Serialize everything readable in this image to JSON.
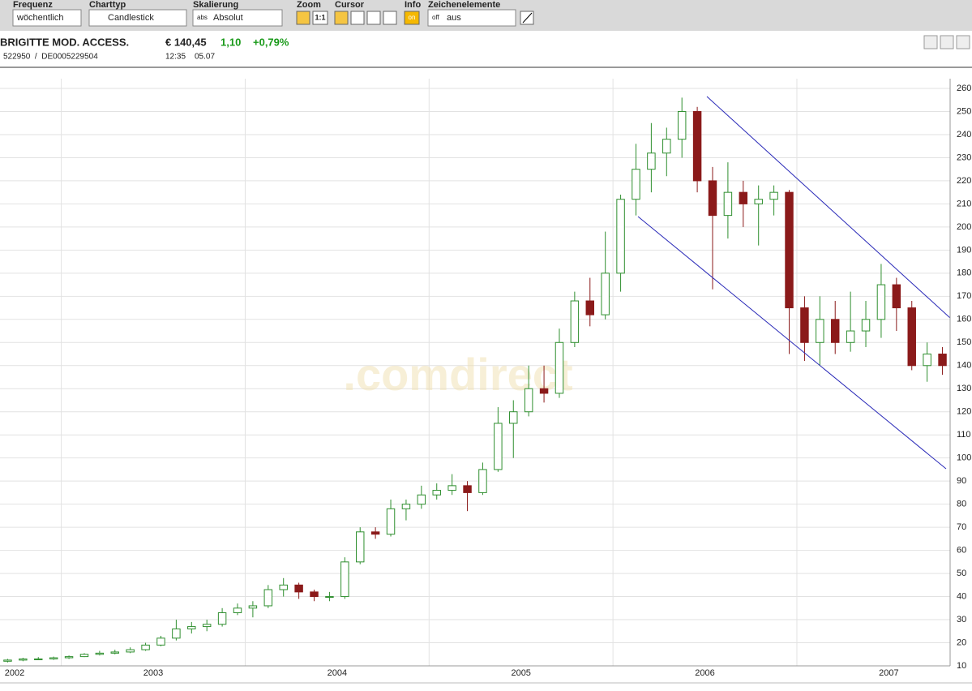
{
  "toolbar": {
    "frequency_label": "Frequenz",
    "frequency": "wöchentlich",
    "charttype_label": "Charttyp",
    "charttype": "Candlestick",
    "scaling_label": "Skalierung",
    "scaling_icon": "abs",
    "scaling": "Absolut",
    "zoom_label": "Zoom",
    "zoom_reset": "1:1",
    "cursor_label": "Cursor",
    "info_label": "Info",
    "info": "on",
    "drawing_label": "Zeichenelemente",
    "drawing_icon": "off",
    "drawing": "aus"
  },
  "quote": {
    "name": "BRIGITTE MOD. ACCESS.",
    "price": "€ 140,45",
    "change": "1,10",
    "change_pct": "+0,79%",
    "ids": "522950  /  DE0005229504",
    "time": "12:35",
    "date": "05.07",
    "watermark": ".comdirect"
  },
  "chart_data": {
    "type": "candlestick",
    "categories": [
      "2002",
      null,
      null,
      null,
      null,
      null,
      null,
      null,
      null,
      null,
      "2003",
      null,
      null,
      null,
      null,
      null,
      null,
      null,
      null,
      null,
      null,
      null,
      "2004",
      null,
      null,
      null,
      null,
      null,
      null,
      null,
      null,
      null,
      null,
      null,
      "2005",
      null,
      null,
      null,
      null,
      null,
      null,
      null,
      null,
      null,
      null,
      null,
      "2006",
      null,
      null,
      null,
      null,
      null,
      null,
      null,
      null,
      null,
      null,
      null,
      "2007",
      null,
      null,
      null
    ],
    "open": [
      12,
      12.5,
      13,
      13,
      13.5,
      14,
      15,
      15.5,
      16,
      17,
      19,
      22,
      26,
      27,
      28,
      33,
      35,
      36,
      43,
      45,
      42,
      40,
      40,
      55,
      68,
      67,
      78,
      80,
      84,
      86,
      88,
      85,
      95,
      115,
      120,
      130,
      128,
      150,
      168,
      162,
      180,
      212,
      225,
      232,
      238,
      250,
      220,
      205,
      215,
      210,
      212,
      215,
      165,
      150,
      160,
      150,
      155,
      160,
      175,
      165,
      140,
      145
    ],
    "high": [
      13,
      13.5,
      13.8,
      14,
      14.5,
      15.5,
      16.5,
      17,
      18,
      20,
      23,
      30,
      29,
      30,
      35,
      37,
      38,
      45,
      48,
      46,
      43,
      42,
      57,
      70,
      70,
      82,
      82,
      88,
      89,
      93,
      90,
      98,
      122,
      125,
      140,
      140,
      156,
      172,
      178,
      198,
      214,
      236,
      245,
      243,
      256,
      252,
      226,
      228,
      220,
      218,
      218,
      216,
      170,
      170,
      168,
      172,
      168,
      184,
      178,
      168,
      150,
      148
    ],
    "low": [
      11.5,
      12,
      12.5,
      12.6,
      13,
      13.8,
      14.5,
      15,
      15.5,
      16.5,
      18.5,
      21,
      24,
      25,
      27,
      32,
      31,
      35,
      40,
      39,
      38,
      38,
      39,
      54,
      65,
      66,
      73,
      78,
      82,
      84,
      77,
      84,
      94,
      100,
      118,
      124,
      126,
      148,
      157,
      160,
      172,
      205,
      215,
      222,
      230,
      215,
      173,
      195,
      200,
      192,
      205,
      145,
      142,
      140,
      145,
      146,
      148,
      152,
      155,
      138,
      133,
      136
    ],
    "close": [
      12.5,
      13,
      13,
      13.5,
      14,
      15,
      15.5,
      16,
      17,
      19,
      22,
      26,
      27,
      28,
      33,
      35,
      36,
      43,
      45,
      42,
      40,
      40,
      55,
      68,
      67,
      78,
      80,
      84,
      86,
      88,
      85,
      95,
      115,
      120,
      130,
      128,
      150,
      168,
      162,
      180,
      212,
      225,
      232,
      238,
      250,
      220,
      205,
      215,
      210,
      212,
      215,
      165,
      150,
      160,
      150,
      155,
      160,
      175,
      165,
      140,
      145,
      140
    ],
    "up_color": "#2f8f2f",
    "down_color": "#8b1a1a",
    "ylim": [
      10,
      260
    ],
    "yticks": [
      10,
      20,
      30,
      40,
      50,
      60,
      70,
      80,
      90,
      100,
      110,
      120,
      130,
      140,
      150,
      160,
      170,
      180,
      190,
      200,
      210,
      220,
      230,
      240,
      250,
      260
    ],
    "grid": true,
    "y_axis_side": "right"
  }
}
